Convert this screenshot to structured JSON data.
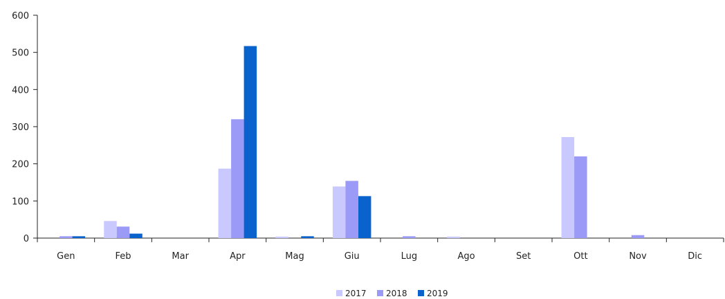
{
  "chart_data": {
    "type": "bar",
    "categories": [
      "Gen",
      "Feb",
      "Mar",
      "Apr",
      "Mag",
      "Giu",
      "Lug",
      "Ago",
      "Set",
      "Ott",
      "Nov",
      "Dic"
    ],
    "series": [
      {
        "name": "2017",
        "color": "#c9c9ff",
        "values": [
          0,
          46,
          0,
          187,
          4,
          139,
          0,
          4,
          0,
          272,
          0,
          0
        ]
      },
      {
        "name": "2018",
        "color": "#9b9bf7",
        "values": [
          5,
          31,
          0,
          320,
          0,
          154,
          5,
          0,
          0,
          220,
          8,
          0
        ]
      },
      {
        "name": "2019",
        "color": "#0a63cc",
        "values": [
          5,
          12,
          0,
          517,
          5,
          113,
          0,
          0,
          0,
          0,
          0,
          0
        ]
      }
    ],
    "yticks": [
      "0",
      "100",
      "200",
      "300",
      "400",
      "500",
      "600"
    ],
    "ylim": [
      0,
      600
    ],
    "title": "",
    "xlabel": "",
    "ylabel": "",
    "legend_position": "bottom-center",
    "grid": false
  }
}
